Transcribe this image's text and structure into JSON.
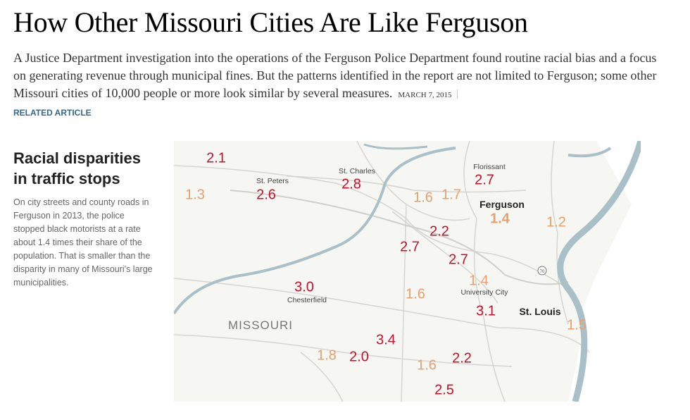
{
  "headline": "How Other Missouri Cities Are Like Ferguson",
  "summary": "A Justice Department investigation into the operations of the Ferguson Police Department found routine racial bias and a focus on generating revenue through municipal fines. But the patterns identified in the report are not limited to Ferguson; some other Missouri cities of 10,000 people or more look similar by several measures.",
  "date": "MARCH 7, 2015",
  "related_article": "RELATED ARTICLE",
  "sidebar": {
    "title": "Racial disparities in traffic stops",
    "text": "On city streets and county roads in Ferguson in 2013, the police stopped black motorists at a rate about 1.4 times their share of the population. That is smaller than the disparity in many of Missouri's large municipalities."
  },
  "colors": {
    "high": "#c8102e",
    "low": "#e6a06e",
    "link": "#326891",
    "river": "#a9c0c8"
  },
  "map": {
    "state_label": "MISSOURI",
    "highway_shield": "70",
    "cities": [
      "St. Peters",
      "St. Charles",
      "Florissant",
      "Ferguson",
      "University City",
      "Chesterfield",
      "St. Louis"
    ],
    "values": [
      "2.1",
      "1.3",
      "2.6",
      "2.8",
      "1.6",
      "1.7",
      "2.7",
      "1.4",
      "1.2",
      "2.2",
      "2.7",
      "2.7",
      "1.4",
      "3.0",
      "1.6",
      "3.1",
      "1.5",
      "3.4",
      "1.8",
      "2.0",
      "1.6",
      "2.2",
      "2.5"
    ]
  }
}
